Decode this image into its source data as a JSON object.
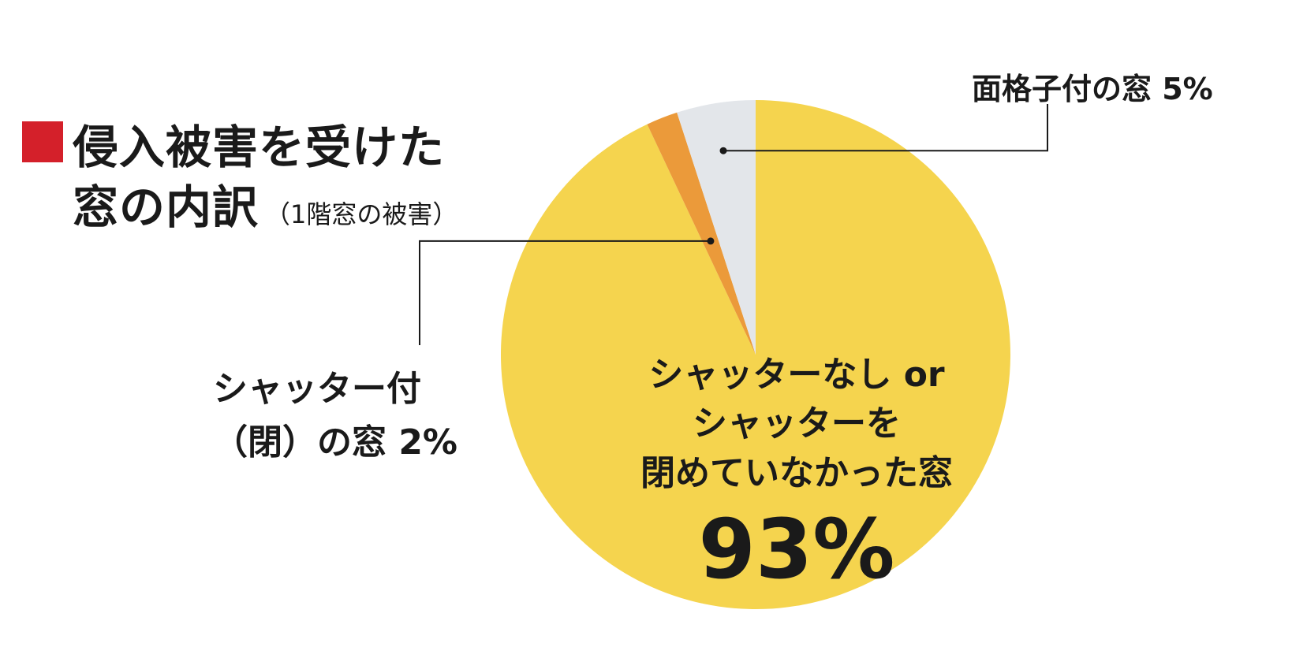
{
  "title": {
    "line1": "侵入被害を受けた",
    "line2": "窓の内訳",
    "subtitle": "（1階窓の被害）",
    "marker_color": "#d4202a"
  },
  "chart_data": {
    "type": "pie",
    "categories": [
      "シャッターなし or シャッターを閉めていなかった窓",
      "シャッター付（閉）の窓",
      "面格子付の窓"
    ],
    "values": [
      93,
      2,
      5
    ],
    "units": "%",
    "colors": [
      "#f5d44e",
      "#eb9a3a",
      "#e3e6ea"
    ],
    "start": "12 o'clock",
    "direction": "clockwise",
    "legend": "none",
    "labels": {
      "main": {
        "line1": "シャッターなし or",
        "line2": "シャッターを",
        "line3": "閉めていなかった窓",
        "value": "93%"
      },
      "shutter": {
        "line1": "シャッター付",
        "line2": "（閉）の窓 2%"
      },
      "lattice": "面格子付の窓 5%"
    }
  }
}
